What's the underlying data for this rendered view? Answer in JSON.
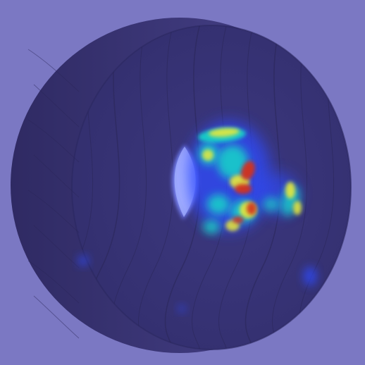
{
  "scene": {
    "subject": "wooden-disc",
    "overlay": "anomaly-heatmap",
    "colors": {
      "background": "#7b78c3",
      "object_rim": "#3b3574",
      "object_face": "#3a367a",
      "object_shadow": "#2e2a62",
      "grain": "#2a2658",
      "hole_glow": "#8fa0ff",
      "heat_low": "#2f4bff",
      "heat_mid": "#19d7c8",
      "heat_warm": "#e8e83a",
      "heat_high": "#d3321a"
    }
  }
}
